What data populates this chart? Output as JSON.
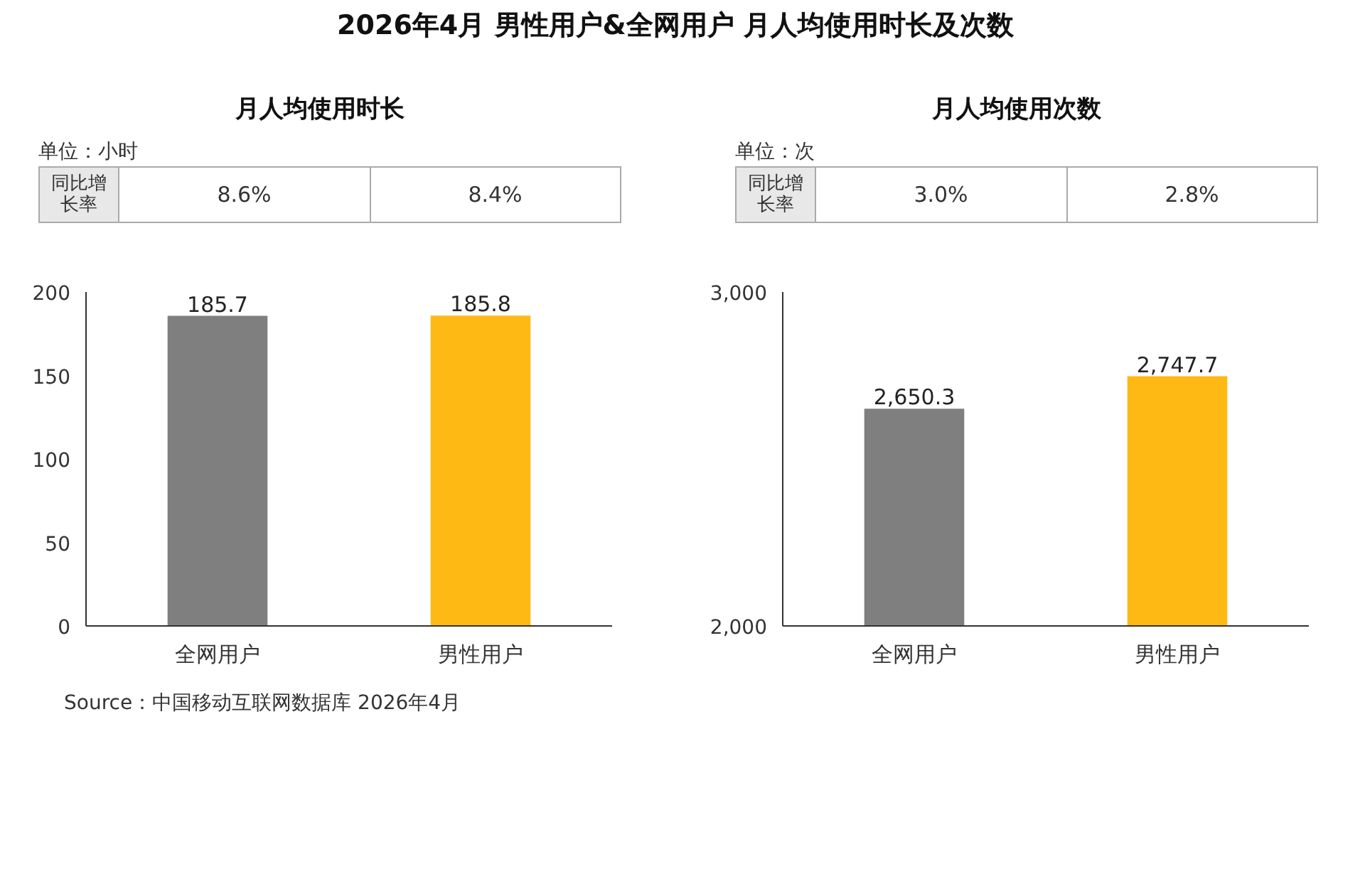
{
  "chart_data": [
    {
      "type": "bar",
      "title": "2026年4月 男性用户&全网用户 月人均使用时长及次数",
      "subtitle": "月人均使用时长",
      "ylabel": "单位：小时",
      "categories": [
        "全网用户",
        "男性用户"
      ],
      "values": [
        185.7,
        185.8
      ],
      "colors": [
        "#7f7f7f",
        "#ffb915"
      ],
      "ylim": [
        0,
        200
      ],
      "yticks": [
        0,
        50,
        100,
        150,
        200
      ],
      "data_labels": true,
      "grid": false,
      "annotations": [
        "同比增长率",
        "8.6%",
        "8.4%",
        "Source：中国移动互联网数据库 2026年4月"
      ]
    },
    {
      "type": "bar",
      "subtitle": "月人均使用次数",
      "ylabel": "单位：次",
      "categories": [
        "全网用户",
        "男性用户"
      ],
      "values": [
        2650.3,
        2747.7
      ],
      "colors": [
        "#7f7f7f",
        "#ffb915"
      ],
      "ylim": [
        2000,
        3000
      ],
      "yticks": [
        {
          "value": 2000,
          "label": "2,000"
        },
        {
          "value": 3000,
          "label": "3,000"
        }
      ],
      "value_labels": [
        "2,650.3",
        "2,747.7"
      ],
      "grid": false,
      "annotations": [
        "同比增长率",
        "3.0%",
        "2.8%"
      ]
    }
  ]
}
